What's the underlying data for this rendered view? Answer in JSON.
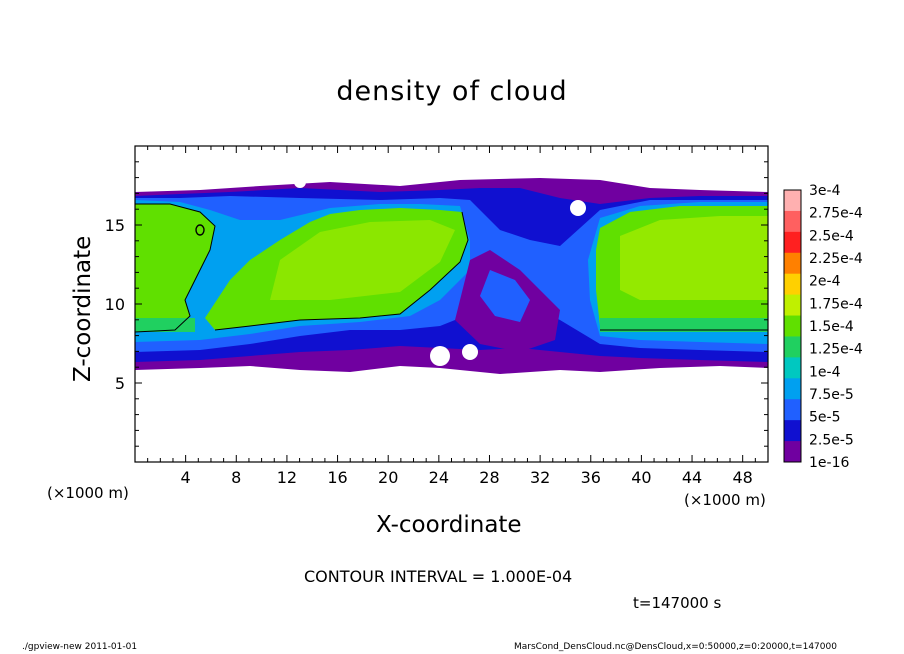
{
  "chart_data": {
    "type": "heatmap",
    "title": "density of cloud",
    "xlabel": "X-coordinate",
    "ylabel": "Z-coordinate",
    "x_unit": "(×1000 m)",
    "x_unit_right": "(×1000 m)",
    "xlim": [
      0,
      50
    ],
    "ylim": [
      0,
      20
    ],
    "x_ticks": [
      4,
      8,
      12,
      16,
      20,
      24,
      28,
      32,
      36,
      40,
      44,
      48
    ],
    "x_tick_labels": [
      "4",
      "8",
      "12",
      "16",
      "20",
      "24",
      "28",
      "32",
      "36",
      "40",
      "44",
      "48"
    ],
    "y_ticks": [
      5,
      10,
      15
    ],
    "y_tick_labels": [
      "5",
      "10",
      "15"
    ],
    "colorbar": {
      "labels": [
        "3e-4",
        "2.75e-4",
        "2.5e-4",
        "2.25e-4",
        "2e-4",
        "1.75e-4",
        "1.5e-4",
        "1.25e-4",
        "1e-4",
        "7.5e-5",
        "5e-5",
        "2.5e-5",
        "1e-16"
      ],
      "colors": [
        "#ffb0b0",
        "#ff6060",
        "#ff2020",
        "#ff8000",
        "#ffd000",
        "#c0f000",
        "#60e000",
        "#20d060",
        "#00c8c0",
        "#00a0f0",
        "#2060ff",
        "#1010d0",
        "#7000a0"
      ]
    },
    "contour_interval": "CONTOUR INTERVAL = 1.000E-04",
    "time": "t=147000 s"
  },
  "footer": {
    "left": "./gpview-new  2011-01-01",
    "right": "MarsCond_DensCloud.nc@DensCloud,x=0:50000,z=0:20000,t=147000"
  }
}
